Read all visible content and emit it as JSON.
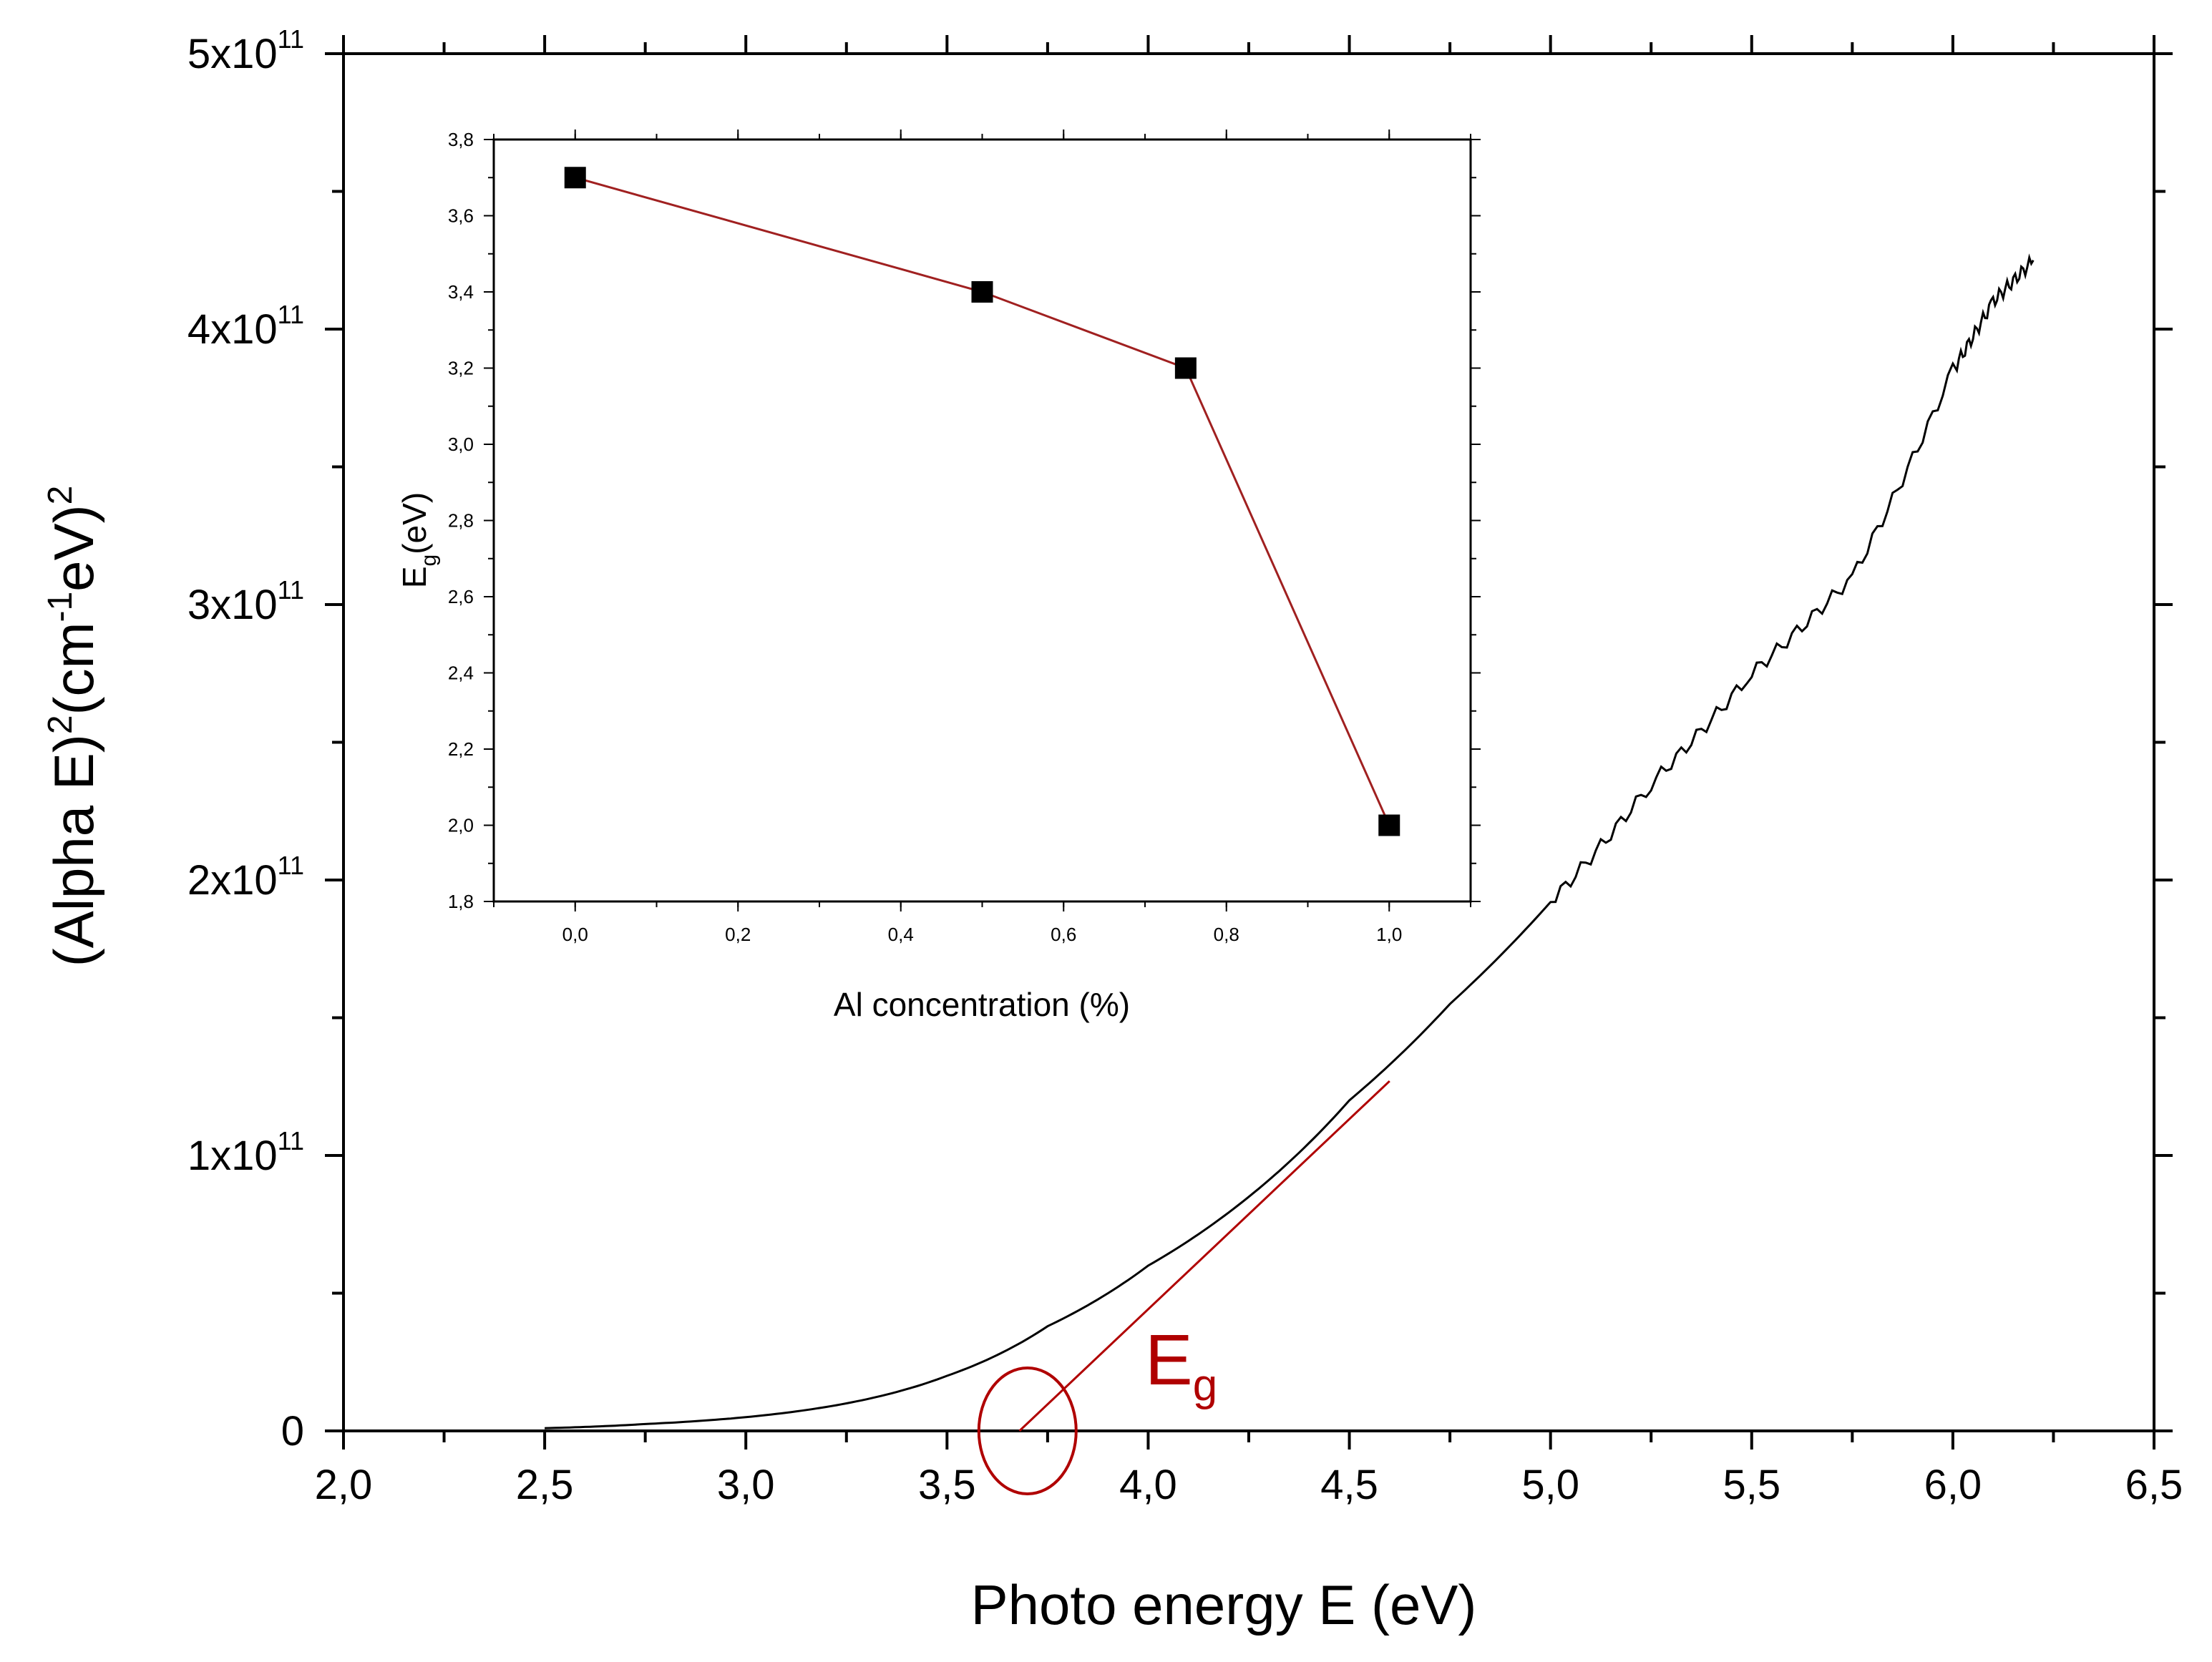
{
  "colors": {
    "curve": "#000000",
    "annotation": "#b00000",
    "inset_line": "#a02020",
    "marker": "#000000"
  },
  "chart_data": [
    {
      "id": "main",
      "type": "line",
      "title": "",
      "xlabel": "Photo energy E (eV)",
      "ylabel_parts": {
        "p1": "(Alpha E)",
        "sup1": "2",
        "p2": "(cm",
        "sup2": "-1",
        "p3": "eV)",
        "sup3": "2"
      },
      "xlim": [
        2.0,
        6.5
      ],
      "ylim": [
        0,
        500000000000.0
      ],
      "x_ticks": [
        2.0,
        2.5,
        3.0,
        3.5,
        4.0,
        4.5,
        5.0,
        5.5,
        6.0,
        6.5
      ],
      "x_tick_labels": [
        "2,0",
        "2,5",
        "3,0",
        "3,5",
        "4,0",
        "4,5",
        "5,0",
        "5,5",
        "6,0",
        "6,5"
      ],
      "y_ticks": [
        {
          "value": 0,
          "mant": "0",
          "exp": ""
        },
        {
          "value": 100000000000.0,
          "mant": "1x10",
          "exp": "11"
        },
        {
          "value": 200000000000.0,
          "mant": "2x10",
          "exp": "11"
        },
        {
          "value": 300000000000.0,
          "mant": "3x10",
          "exp": "11"
        },
        {
          "value": 400000000000.0,
          "mant": "4x10",
          "exp": "11"
        },
        {
          "value": 500000000000.0,
          "mant": "5x10",
          "exp": "11"
        }
      ],
      "series": [
        {
          "name": "(Alpha E)^2 spectrum",
          "x": [
            2.5,
            2.75,
            3.0,
            3.25,
            3.5,
            3.75,
            4.0,
            4.25,
            4.5,
            4.75,
            5.0,
            5.25,
            5.5,
            5.75,
            6.0,
            6.1,
            6.2
          ],
          "y": [
            1000000000.0,
            2500000000.0,
            5000000000.0,
            10000000000.0,
            20000000000.0,
            38000000000.0,
            60000000000.0,
            85000000000.0,
            120000000000.0,
            155000000000.0,
            192000000000.0,
            235000000000.0,
            275000000000.0,
            310000000000.0,
            385000000000.0,
            410000000000.0,
            425000000000.0
          ]
        },
        {
          "name": "linear fit",
          "x": [
            3.68,
            4.6
          ],
          "y": [
            0,
            127000000000.0
          ]
        }
      ],
      "annotations": {
        "eg_label": {
          "main": "E",
          "sub": "g"
        },
        "eg_x": 3.7
      }
    },
    {
      "id": "inset",
      "type": "line",
      "title": "",
      "xlabel": "Al concentration (%)",
      "ylabel": {
        "main": "E",
        "sub": "g",
        "rest": "(eV)"
      },
      "xlim": [
        -0.1,
        1.1
      ],
      "ylim": [
        1.8,
        3.8
      ],
      "x_ticks": [
        0.0,
        0.2,
        0.4,
        0.6,
        0.8,
        1.0
      ],
      "x_tick_labels": [
        "0,0",
        "0,2",
        "0,4",
        "0,6",
        "0,8",
        "1,0"
      ],
      "y_ticks": [
        1.8,
        2.0,
        2.2,
        2.4,
        2.6,
        2.8,
        3.0,
        3.2,
        3.4,
        3.6,
        3.8
      ],
      "y_tick_labels": [
        "1,8",
        "2,0",
        "2,2",
        "2,4",
        "2,6",
        "2,8",
        "3,0",
        "3,2",
        "3,4",
        "3,6",
        "3,8"
      ],
      "series": [
        {
          "name": "Eg",
          "x": [
            0.0,
            0.5,
            0.75,
            1.0
          ],
          "y": [
            3.7,
            3.4,
            3.2,
            2.0
          ]
        }
      ]
    }
  ]
}
